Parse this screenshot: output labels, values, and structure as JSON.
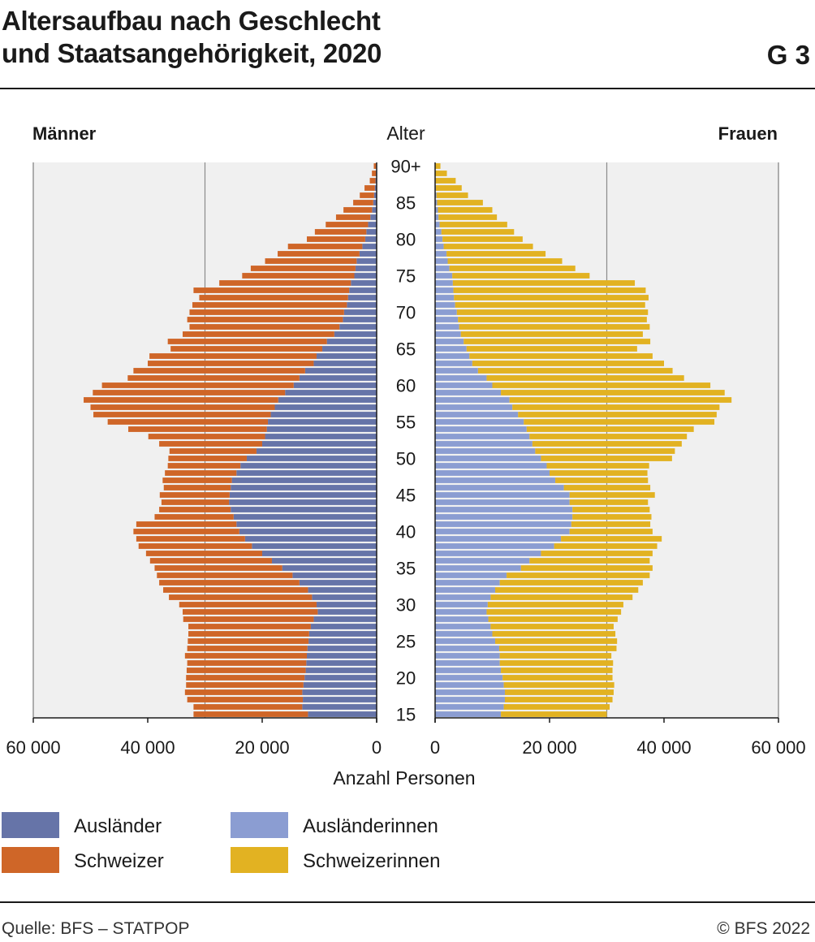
{
  "header": {
    "title_line1": "Altersaufbau nach Geschlecht",
    "title_line2": "und Staatsangehörigkeit, 2020",
    "figure_number": "G 3"
  },
  "footer": {
    "source": "Quelle: BFS – STATPOP",
    "copyright": "© BFS 2022"
  },
  "chart_data": {
    "type": "bar",
    "orientation": "horizontal-population-pyramid",
    "left_label": "Männer",
    "right_label": "Frauen",
    "age_axis_label": "Alter",
    "xlabel": "Anzahl Personen",
    "xlim": [
      0,
      60000
    ],
    "x_ticks_left": [
      "60 000",
      "40 000",
      "20 000",
      "0"
    ],
    "x_ticks_right": [
      "0",
      "20 000",
      "40 000",
      "60 000"
    ],
    "y_ticks": [
      "90+",
      "85",
      "80",
      "75",
      "70",
      "65",
      "60",
      "55",
      "50",
      "45",
      "40",
      "35",
      "30",
      "25",
      "20",
      "15"
    ],
    "grid": true,
    "legend_position": "bottom",
    "colors": {
      "auslaender": "#6674a8",
      "schweizer": "#cf6628",
      "auslaenderinnen": "#8b9dd2",
      "schweizerinnen": "#e2b222",
      "panel": "#f0f0f0"
    },
    "ages": [
      "15",
      "16",
      "17",
      "18",
      "19",
      "20",
      "21",
      "22",
      "23",
      "24",
      "25",
      "26",
      "27",
      "28",
      "29",
      "30",
      "31",
      "32",
      "33",
      "34",
      "35",
      "36",
      "37",
      "38",
      "39",
      "40",
      "41",
      "42",
      "43",
      "44",
      "45",
      "46",
      "47",
      "48",
      "49",
      "50",
      "51",
      "52",
      "53",
      "54",
      "55",
      "56",
      "57",
      "58",
      "59",
      "60",
      "61",
      "62",
      "63",
      "64",
      "65",
      "66",
      "67",
      "68",
      "69",
      "70",
      "71",
      "72",
      "73",
      "74",
      "75",
      "76",
      "77",
      "78",
      "79",
      "80",
      "81",
      "82",
      "83",
      "84",
      "85",
      "86",
      "87",
      "88",
      "89",
      "90+"
    ],
    "series": [
      {
        "name": "Ausländer",
        "side": "left",
        "values": [
          12000,
          13000,
          12900,
          13000,
          12800,
          12600,
          12400,
          12300,
          12200,
          12100,
          11900,
          11800,
          11500,
          11000,
          10300,
          10500,
          11300,
          12000,
          13500,
          14700,
          16500,
          18300,
          20000,
          21800,
          23000,
          24000,
          24500,
          25000,
          25500,
          25800,
          25700,
          25500,
          25300,
          24500,
          23800,
          22700,
          21000,
          20000,
          19500,
          19200,
          19000,
          18500,
          17800,
          17200,
          16000,
          14500,
          13500,
          12500,
          11000,
          10500,
          9500,
          8700,
          7400,
          6500,
          5900,
          5700,
          5200,
          5000,
          4800,
          4500,
          3900,
          3700,
          3500,
          3000,
          2500,
          2000,
          1800,
          1500,
          1100,
          800,
          600,
          450,
          320,
          200,
          130,
          100
        ]
      },
      {
        "name": "Schweizer",
        "side": "left",
        "values": [
          20000,
          19000,
          20200,
          20500,
          20500,
          20700,
          20800,
          20800,
          21300,
          21000,
          21100,
          21100,
          21400,
          22800,
          23600,
          24000,
          25000,
          25300,
          24500,
          23700,
          22300,
          21300,
          20300,
          19800,
          19000,
          18500,
          17500,
          13800,
          12500,
          11800,
          12200,
          11700,
          12100,
          12500,
          12700,
          13700,
          15200,
          18000,
          20400,
          24200,
          28000,
          31000,
          32200,
          34000,
          33600,
          33500,
          30000,
          30000,
          29000,
          29200,
          26500,
          27800,
          26500,
          26200,
          27200,
          27000,
          27000,
          26000,
          27200,
          23000,
          19600,
          18300,
          16000,
          14300,
          13000,
          10200,
          9000,
          7400,
          6000,
          5000,
          3500,
          2500,
          1800,
          1000,
          700,
          400
        ]
      },
      {
        "name": "Ausländerinnen",
        "side": "right",
        "values": [
          11500,
          12000,
          12200,
          12200,
          12000,
          11800,
          11500,
          11300,
          11300,
          11200,
          10500,
          10000,
          9700,
          9300,
          9000,
          9200,
          9700,
          10500,
          11300,
          12500,
          15000,
          16500,
          18500,
          20800,
          22000,
          23500,
          23800,
          24000,
          24000,
          23500,
          23500,
          22500,
          21000,
          20000,
          19500,
          18500,
          17500,
          17000,
          16500,
          16000,
          15500,
          14500,
          13500,
          13000,
          11500,
          10000,
          9000,
          7500,
          6500,
          6000,
          5500,
          5000,
          4500,
          4200,
          4000,
          3800,
          3500,
          3300,
          3200,
          3100,
          3000,
          2500,
          2200,
          2000,
          1500,
          1300,
          1100,
          800,
          600,
          500,
          350,
          250,
          150,
          100,
          60,
          30
        ]
      },
      {
        "name": "Schweizerinnen",
        "side": "right",
        "values": [
          18500,
          18500,
          18800,
          19000,
          19300,
          19200,
          19500,
          19800,
          19500,
          20500,
          21300,
          21500,
          21500,
          22600,
          23500,
          23700,
          24800,
          25000,
          25000,
          25000,
          23000,
          21000,
          19500,
          18000,
          17600,
          14500,
          13800,
          13800,
          13500,
          13700,
          14900,
          15100,
          16200,
          17100,
          17900,
          22900,
          24400,
          26100,
          27500,
          29200,
          33300,
          34700,
          36200,
          38800,
          39100,
          38100,
          34500,
          34000,
          33500,
          32000,
          29800,
          32600,
          31800,
          33300,
          33000,
          33400,
          33200,
          34000,
          33600,
          31800,
          24000,
          22000,
          20000,
          17300,
          15600,
          14000,
          12700,
          11800,
          10200,
          9500,
          8000,
          5500,
          4500,
          3500,
          2000,
          900
        ]
      }
    ]
  }
}
